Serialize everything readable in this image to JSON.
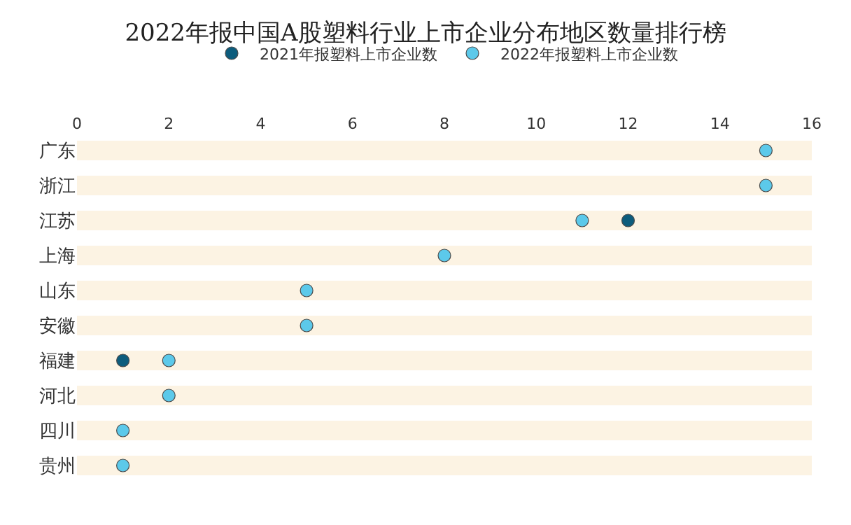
{
  "chart_data": {
    "type": "scatter",
    "orientation": "horizontal",
    "title": "2022年报中国A股塑料行业上市企业分布地区数量排行榜",
    "categories": [
      "广东",
      "浙江",
      "江苏",
      "上海",
      "山东",
      "安徽",
      "福建",
      "河北",
      "四川",
      "贵州"
    ],
    "series": [
      {
        "name": "2021年报塑料上市企业数",
        "color": "#0d5c7c",
        "values": [
          null,
          null,
          12,
          null,
          null,
          null,
          1,
          null,
          null,
          null
        ]
      },
      {
        "name": "2022年报塑料上市企业数",
        "color": "#5cc9ea",
        "values": [
          15,
          15,
          11,
          8,
          5,
          5,
          2,
          2,
          1,
          1
        ]
      }
    ],
    "xlim": [
      0,
      16
    ],
    "xticks": [
      0,
      2,
      4,
      6,
      8,
      10,
      12,
      14,
      16
    ],
    "grid": "y",
    "legend": "top",
    "marker": "circle"
  }
}
